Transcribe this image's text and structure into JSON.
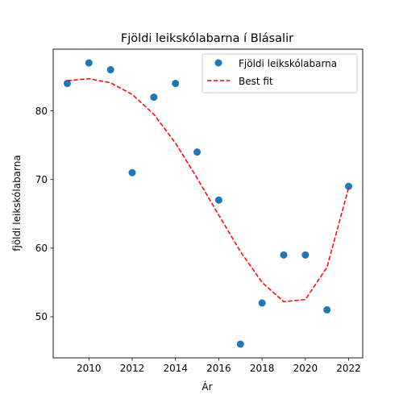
{
  "chart_data": {
    "type": "scatter",
    "title": "Fjöldi leikskólabarna í Blásalir",
    "xlabel": "Ár",
    "ylabel": "fjöldi leikskólabarna",
    "xlim": [
      2008.35,
      2022.65
    ],
    "ylim": [
      44.0,
      89.0
    ],
    "xticks": [
      2010,
      2012,
      2014,
      2016,
      2018,
      2020,
      2022
    ],
    "yticks": [
      50,
      60,
      70,
      80
    ],
    "grid": false,
    "legend_position": "top-right",
    "series": [
      {
        "name": "Fjöldi leikskólabarna",
        "kind": "scatter",
        "color": "#1f77b4",
        "x": [
          2009,
          2010,
          2011,
          2012,
          2013,
          2014,
          2015,
          2016,
          2017,
          2018,
          2019,
          2020,
          2021,
          2022
        ],
        "y": [
          84,
          87,
          86,
          71,
          82,
          84,
          74,
          67,
          46,
          52,
          59,
          59,
          51,
          69
        ]
      },
      {
        "name": "Best fit",
        "kind": "line",
        "style": "dashed",
        "color": "#ff0000",
        "x": [
          2009,
          2010,
          2011,
          2012,
          2013,
          2014,
          2015,
          2016,
          2017,
          2018,
          2019,
          2020,
          2021,
          2022
        ],
        "y": [
          84.4,
          84.7,
          84.1,
          82.4,
          79.5,
          75.3,
          70.2,
          64.8,
          59.5,
          55.0,
          52.2,
          52.5,
          57.2,
          68.8
        ]
      }
    ]
  }
}
